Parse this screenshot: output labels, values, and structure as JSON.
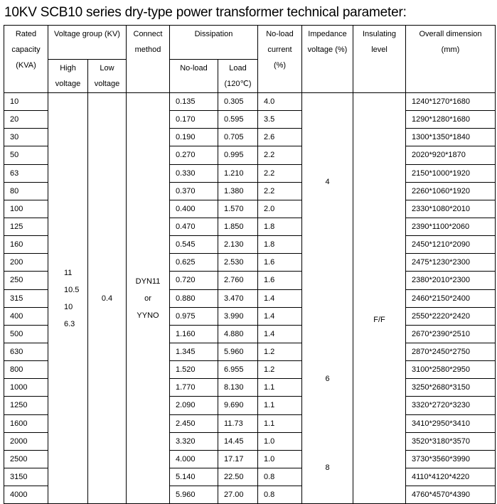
{
  "title": "10KV SCB10 series dry-type power transformer technical parameter:",
  "headers": {
    "rated_capacity": [
      "Rated",
      "capacity",
      "(KVA)"
    ],
    "voltage_group": "Voltage group (KV)",
    "high_voltage": [
      "High",
      "voltage"
    ],
    "low_voltage": [
      "Low",
      "voltage"
    ],
    "connect_method": [
      "Connect",
      "method"
    ],
    "dissipation": "Dissipation",
    "no_load": "No-load",
    "load": [
      "Load",
      "(120℃)"
    ],
    "no_load_current": [
      "No-load",
      "current",
      "(%)"
    ],
    "impedance_voltage": [
      "Impedance",
      "voltage (%)"
    ],
    "insulating_level": [
      "Insulating",
      "level"
    ],
    "overall_dimension": [
      "Overall dimension",
      "(mm)"
    ]
  },
  "merged": {
    "high_voltage": [
      "11",
      "10.5",
      "10",
      "6.3"
    ],
    "low_voltage": "0.4",
    "connect_method": [
      "DYN11",
      "or",
      "YYNO"
    ],
    "impedance": [
      "4",
      "6",
      "8"
    ],
    "insulating_level": "F/F"
  },
  "rows": [
    [
      "10",
      "0.135",
      "0.305",
      "4.0",
      "1240*1270*1680"
    ],
    [
      "20",
      "0.170",
      "0.595",
      "3.5",
      "1290*1280*1680"
    ],
    [
      "30",
      "0.190",
      "0.705",
      "2.6",
      "1300*1350*1840"
    ],
    [
      "50",
      "0.270",
      "0.995",
      "2.2",
      "2020*920*1870"
    ],
    [
      "63",
      "0.330",
      "1.210",
      "2.2",
      "2150*1000*1920"
    ],
    [
      "80",
      "0.370",
      "1.380",
      "2.2",
      "2260*1060*1920"
    ],
    [
      "100",
      "0.400",
      "1.570",
      "2.0",
      "2330*1080*2010"
    ],
    [
      "125",
      "0.470",
      "1.850",
      "1.8",
      "2390*1100*2060"
    ],
    [
      "160",
      "0.545",
      "2.130",
      "1.8",
      "2450*1210*2090"
    ],
    [
      "200",
      "0.625",
      "2.530",
      "1.6",
      "2475*1230*2300"
    ],
    [
      "250",
      "0.720",
      "2.760",
      "1.6",
      "2380*2010*2300"
    ],
    [
      "315",
      "0.880",
      "3.470",
      "1.4",
      "2460*2150*2400"
    ],
    [
      "400",
      "0.975",
      "3.990",
      "1.4",
      "2550*2220*2420"
    ],
    [
      "500",
      "1.160",
      "4.880",
      "1.4",
      "2670*2390*2510"
    ],
    [
      "630",
      "1.345",
      "5.960",
      "1.2",
      "2870*2450*2750"
    ],
    [
      "800",
      "1.520",
      "6.955",
      "1.2",
      "3100*2580*2950"
    ],
    [
      "1000",
      "1.770",
      "8.130",
      "1.1",
      "3250*2680*3150"
    ],
    [
      "1250",
      "2.090",
      "9.690",
      "1.1",
      "3320*2720*3230"
    ],
    [
      "1600",
      "2.450",
      "11.73",
      "1.1",
      "3410*2950*3410"
    ],
    [
      "2000",
      "3.320",
      "14.45",
      "1.0",
      "3520*3180*3570"
    ],
    [
      "2500",
      "4.000",
      "17.17",
      "1.0",
      "3730*3560*3990"
    ],
    [
      "3150",
      "5.140",
      "22.50",
      "0.8",
      "4110*4120*4220"
    ],
    [
      "4000",
      "5.960",
      "27.00",
      "0.8",
      "4760*4570*4390"
    ]
  ]
}
